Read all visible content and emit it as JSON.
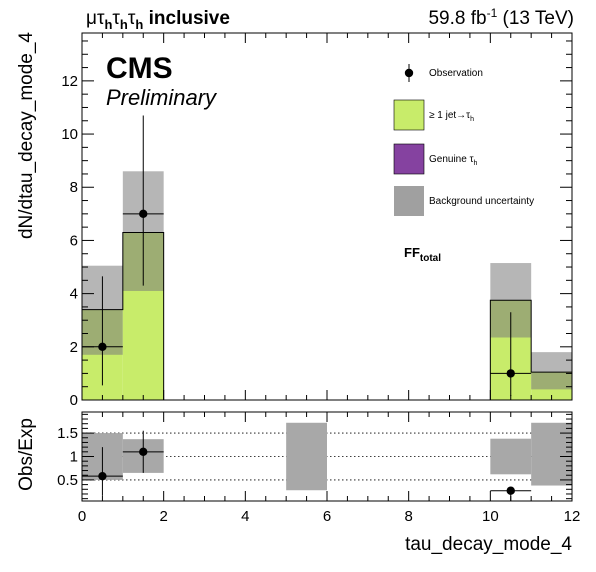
{
  "header": {
    "channel_prefix": "μτ",
    "channel_sub1": "h",
    "channel_mid": "τ",
    "channel_sub2": "h",
    "channel_mid2": "τ",
    "channel_sub3": "h",
    "channel_suffix": " inclusive",
    "lumi_value": "59.8 fb",
    "lumi_exp": "-1",
    "lumi_energy": " (13 TeV)"
  },
  "labels": {
    "cms": "CMS",
    "preliminary": "Preliminary",
    "ff_main": "FF",
    "ff_sub": "total"
  },
  "colors": {
    "jet_to_tau": "#c8ec6a",
    "genuine_tau": "#8542a0",
    "uncertainty": "#a0a0a0",
    "overlap": "#8aa858"
  },
  "chart_data": [
    {
      "type": "bar",
      "panel": "main",
      "xlabel": "",
      "ylabel": "dN/dtau_decay_mode_4",
      "xlim": [
        0,
        12
      ],
      "ylim": [
        0,
        13.8
      ],
      "yticks": [
        "0",
        "2",
        "4",
        "6",
        "8",
        "10",
        "12"
      ],
      "xticks": [
        "0",
        "2",
        "4",
        "6",
        "8",
        "10",
        "12"
      ],
      "bin_edges": [
        0,
        1,
        2,
        3,
        4,
        5,
        6,
        7,
        8,
        9,
        10,
        11,
        12
      ],
      "series": [
        {
          "name": "≥ 1 jet→τ",
          "name_sub": "h",
          "kind": "stack",
          "values": [
            3.4,
            6.3,
            0,
            0,
            0,
            0,
            0,
            0,
            0,
            0,
            3.75,
            1.05
          ]
        },
        {
          "name": "Genuine τ",
          "name_sub": "h",
          "kind": "stack",
          "values": [
            0,
            0,
            0,
            0,
            0,
            0,
            0,
            0,
            0,
            0,
            0,
            0
          ]
        },
        {
          "name": "Background uncertainty",
          "kind": "band",
          "low": [
            1.7,
            4.1,
            0,
            0,
            0,
            0,
            0,
            0,
            0,
            0,
            2.35,
            0.4
          ],
          "high": [
            5.05,
            8.6,
            0,
            0,
            0,
            0,
            0,
            0,
            0,
            0,
            5.15,
            1.8
          ]
        },
        {
          "name": "Observation",
          "kind": "points",
          "x": [
            0.5,
            1.5,
            10.5
          ],
          "y": [
            2.0,
            7.0,
            1.0
          ],
          "err_low": [
            1.45,
            2.7,
            0.85
          ],
          "err_high": [
            2.65,
            3.7,
            2.3
          ]
        }
      ],
      "legend_position": "top-right"
    },
    {
      "type": "scatter",
      "panel": "ratio",
      "xlabel": "tau_decay_mode_4",
      "ylabel": "Obs/Exp",
      "xlim": [
        0,
        12
      ],
      "ylim": [
        0.05,
        1.95
      ],
      "yticks": [
        "0.5",
        "1",
        "1.5"
      ],
      "xticks": [
        "0",
        "2",
        "4",
        "6",
        "8",
        "10",
        "12"
      ],
      "reference_lines": [
        0.5,
        1.0,
        1.5
      ],
      "uncertainty_band": [
        {
          "x": [
            0,
            1
          ],
          "low": 0.5,
          "high": 1.5
        },
        {
          "x": [
            1,
            2
          ],
          "low": 0.65,
          "high": 1.37
        },
        {
          "x": [
            5,
            6
          ],
          "low": 0.28,
          "high": 1.72
        },
        {
          "x": [
            10,
            11
          ],
          "low": 0.62,
          "high": 1.38
        },
        {
          "x": [
            11,
            12
          ],
          "low": 0.38,
          "high": 1.72
        }
      ],
      "points": {
        "x": [
          0.5,
          1.5,
          10.5
        ],
        "y": [
          0.58,
          1.1,
          0.27
        ],
        "err_low": [
          0.42,
          0.45,
          0.22
        ],
        "err_high": [
          0.62,
          0.45,
          0.0
        ]
      }
    }
  ]
}
